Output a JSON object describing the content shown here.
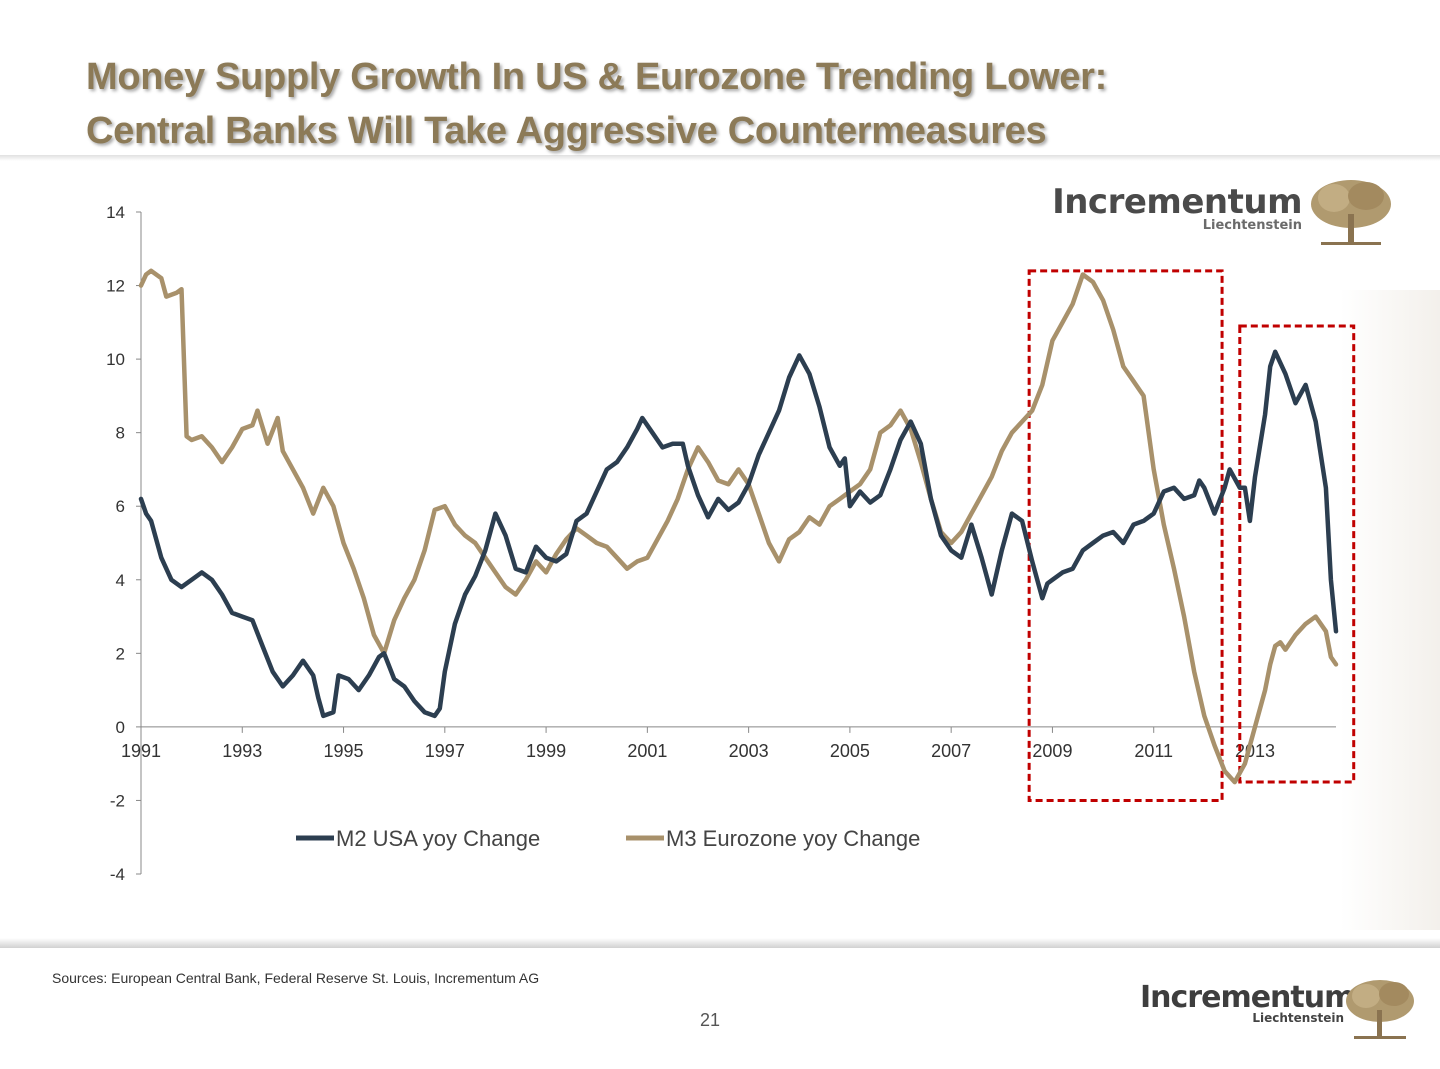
{
  "title": {
    "line1": "Money Supply Growth In US & Eurozone Trending Lower:",
    "line2": "Central Banks Will Take Aggressive Countermeasures"
  },
  "brand": {
    "name": "Incrementum",
    "sub": "Liechtenstein",
    "logo_icon": "tree-icon"
  },
  "footer": {
    "sources": "Sources: European Central Bank, Federal Reserve St. Louis, Incrementum AG",
    "page": "21"
  },
  "colors": {
    "m2": "#2c3e50",
    "m3": "#a8916b",
    "highlight": "#c00000",
    "title": "#8c7a57"
  },
  "chart_data": {
    "type": "line",
    "title": "",
    "xlabel": "",
    "ylabel": "",
    "xlim": [
      1991,
      2014.6
    ],
    "ylim": [
      -4,
      14
    ],
    "y_ticks": [
      -4,
      -2,
      0,
      2,
      4,
      6,
      8,
      10,
      12,
      14
    ],
    "x_ticks": [
      "1991",
      "1993",
      "1995",
      "1997",
      "1999",
      "2001",
      "2003",
      "2005",
      "2007",
      "2009",
      "2011",
      "2013"
    ],
    "grid": false,
    "legend": "bottom-center",
    "series": [
      {
        "name": "M2 USA yoy Change",
        "color": "#2c3e50",
        "points": [
          [
            1991.0,
            6.2
          ],
          [
            1991.1,
            5.8
          ],
          [
            1991.2,
            5.6
          ],
          [
            1991.4,
            4.6
          ],
          [
            1991.6,
            4.0
          ],
          [
            1991.8,
            3.8
          ],
          [
            1992.0,
            4.0
          ],
          [
            1992.2,
            4.2
          ],
          [
            1992.4,
            4.0
          ],
          [
            1992.6,
            3.6
          ],
          [
            1992.8,
            3.1
          ],
          [
            1993.0,
            3.0
          ],
          [
            1993.2,
            2.9
          ],
          [
            1993.4,
            2.2
          ],
          [
            1993.6,
            1.5
          ],
          [
            1993.8,
            1.1
          ],
          [
            1994.0,
            1.4
          ],
          [
            1994.2,
            1.8
          ],
          [
            1994.4,
            1.4
          ],
          [
            1994.5,
            0.8
          ],
          [
            1994.6,
            0.3
          ],
          [
            1994.8,
            0.4
          ],
          [
            1994.9,
            1.4
          ],
          [
            1995.1,
            1.3
          ],
          [
            1995.3,
            1.0
          ],
          [
            1995.5,
            1.4
          ],
          [
            1995.7,
            1.9
          ],
          [
            1995.8,
            2.0
          ],
          [
            1996.0,
            1.3
          ],
          [
            1996.2,
            1.1
          ],
          [
            1996.4,
            0.7
          ],
          [
            1996.6,
            0.4
          ],
          [
            1996.8,
            0.3
          ],
          [
            1996.9,
            0.5
          ],
          [
            1997.0,
            1.5
          ],
          [
            1997.2,
            2.8
          ],
          [
            1997.4,
            3.6
          ],
          [
            1997.6,
            4.1
          ],
          [
            1997.8,
            4.8
          ],
          [
            1998.0,
            5.8
          ],
          [
            1998.2,
            5.2
          ],
          [
            1998.4,
            4.3
          ],
          [
            1998.6,
            4.2
          ],
          [
            1998.8,
            4.9
          ],
          [
            1999.0,
            4.6
          ],
          [
            1999.2,
            4.5
          ],
          [
            1999.4,
            4.7
          ],
          [
            1999.6,
            5.6
          ],
          [
            1999.8,
            5.8
          ],
          [
            2000.0,
            6.4
          ],
          [
            2000.2,
            7.0
          ],
          [
            2000.4,
            7.2
          ],
          [
            2000.6,
            7.6
          ],
          [
            2000.8,
            8.1
          ],
          [
            2000.9,
            8.4
          ],
          [
            2001.1,
            8.0
          ],
          [
            2001.3,
            7.6
          ],
          [
            2001.5,
            7.7
          ],
          [
            2001.7,
            7.7
          ],
          [
            2001.8,
            7.1
          ],
          [
            2002.0,
            6.3
          ],
          [
            2002.2,
            5.7
          ],
          [
            2002.4,
            6.2
          ],
          [
            2002.6,
            5.9
          ],
          [
            2002.8,
            6.1
          ],
          [
            2003.0,
            6.6
          ],
          [
            2003.2,
            7.4
          ],
          [
            2003.4,
            8.0
          ],
          [
            2003.6,
            8.6
          ],
          [
            2003.8,
            9.5
          ],
          [
            2004.0,
            10.1
          ],
          [
            2004.2,
            9.6
          ],
          [
            2004.4,
            8.7
          ],
          [
            2004.6,
            7.6
          ],
          [
            2004.8,
            7.1
          ],
          [
            2004.9,
            7.3
          ],
          [
            2005.0,
            6.0
          ],
          [
            2005.2,
            6.4
          ],
          [
            2005.4,
            6.1
          ],
          [
            2005.6,
            6.3
          ],
          [
            2005.8,
            7.0
          ],
          [
            2006.0,
            7.8
          ],
          [
            2006.2,
            8.3
          ],
          [
            2006.4,
            7.7
          ],
          [
            2006.6,
            6.2
          ],
          [
            2006.8,
            5.2
          ],
          [
            2007.0,
            4.8
          ],
          [
            2007.2,
            4.6
          ],
          [
            2007.4,
            5.5
          ],
          [
            2007.6,
            4.6
          ],
          [
            2007.8,
            3.6
          ],
          [
            2008.0,
            4.8
          ],
          [
            2008.2,
            5.8
          ],
          [
            2008.4,
            5.6
          ],
          [
            2008.6,
            4.5
          ],
          [
            2008.8,
            3.5
          ],
          [
            2008.9,
            3.9
          ],
          [
            2009.0,
            4.0
          ],
          [
            2009.2,
            4.2
          ],
          [
            2009.4,
            4.3
          ],
          [
            2009.6,
            4.8
          ],
          [
            2009.8,
            5.0
          ],
          [
            2010.0,
            5.2
          ],
          [
            2010.2,
            5.3
          ],
          [
            2010.4,
            5.0
          ],
          [
            2010.6,
            5.5
          ],
          [
            2010.8,
            5.6
          ],
          [
            2011.0,
            5.8
          ],
          [
            2011.2,
            6.4
          ],
          [
            2011.4,
            6.5
          ],
          [
            2011.6,
            6.2
          ],
          [
            2011.8,
            6.3
          ],
          [
            2011.9,
            6.7
          ],
          [
            2012.0,
            6.5
          ],
          [
            2012.2,
            5.8
          ],
          [
            2012.4,
            6.5
          ],
          [
            2012.5,
            7.0
          ],
          [
            2012.7,
            6.5
          ],
          [
            2012.8,
            6.5
          ],
          [
            2012.9,
            5.6
          ],
          [
            2013.0,
            6.8
          ],
          [
            2013.2,
            8.5
          ],
          [
            2013.3,
            9.8
          ],
          [
            2013.4,
            10.2
          ],
          [
            2013.6,
            9.6
          ],
          [
            2013.8,
            8.8
          ],
          [
            2014.0,
            9.3
          ],
          [
            2014.2,
            8.3
          ],
          [
            2014.4,
            6.5
          ],
          [
            2014.5,
            4.0
          ],
          [
            2014.6,
            2.6
          ]
        ]
      },
      {
        "name": "M3 Eurozone yoy Change",
        "color": "#a8916b",
        "points": [
          [
            1991.0,
            12.0
          ],
          [
            1991.1,
            12.3
          ],
          [
            1991.2,
            12.4
          ],
          [
            1991.4,
            12.2
          ],
          [
            1991.5,
            11.7
          ],
          [
            1991.7,
            11.8
          ],
          [
            1991.8,
            11.9
          ],
          [
            1991.9,
            7.9
          ],
          [
            1992.0,
            7.8
          ],
          [
            1992.2,
            7.9
          ],
          [
            1992.4,
            7.6
          ],
          [
            1992.6,
            7.2
          ],
          [
            1992.8,
            7.6
          ],
          [
            1993.0,
            8.1
          ],
          [
            1993.2,
            8.2
          ],
          [
            1993.3,
            8.6
          ],
          [
            1993.5,
            7.7
          ],
          [
            1993.7,
            8.4
          ],
          [
            1993.8,
            7.5
          ],
          [
            1994.0,
            7.0
          ],
          [
            1994.2,
            6.5
          ],
          [
            1994.4,
            5.8
          ],
          [
            1994.6,
            6.5
          ],
          [
            1994.8,
            6.0
          ],
          [
            1995.0,
            5.0
          ],
          [
            1995.2,
            4.3
          ],
          [
            1995.4,
            3.5
          ],
          [
            1995.6,
            2.5
          ],
          [
            1995.8,
            2.0
          ],
          [
            1996.0,
            2.9
          ],
          [
            1996.2,
            3.5
          ],
          [
            1996.4,
            4.0
          ],
          [
            1996.6,
            4.8
          ],
          [
            1996.8,
            5.9
          ],
          [
            1997.0,
            6.0
          ],
          [
            1997.2,
            5.5
          ],
          [
            1997.4,
            5.2
          ],
          [
            1997.6,
            5.0
          ],
          [
            1997.8,
            4.6
          ],
          [
            1998.0,
            4.2
          ],
          [
            1998.2,
            3.8
          ],
          [
            1998.4,
            3.6
          ],
          [
            1998.6,
            4.0
          ],
          [
            1998.8,
            4.5
          ],
          [
            1999.0,
            4.2
          ],
          [
            1999.2,
            4.7
          ],
          [
            1999.4,
            5.1
          ],
          [
            1999.6,
            5.4
          ],
          [
            1999.8,
            5.2
          ],
          [
            2000.0,
            5.0
          ],
          [
            2000.2,
            4.9
          ],
          [
            2000.4,
            4.6
          ],
          [
            2000.6,
            4.3
          ],
          [
            2000.8,
            4.5
          ],
          [
            2001.0,
            4.6
          ],
          [
            2001.2,
            5.1
          ],
          [
            2001.4,
            5.6
          ],
          [
            2001.6,
            6.2
          ],
          [
            2001.8,
            7.0
          ],
          [
            2002.0,
            7.6
          ],
          [
            2002.2,
            7.2
          ],
          [
            2002.4,
            6.7
          ],
          [
            2002.6,
            6.6
          ],
          [
            2002.8,
            7.0
          ],
          [
            2003.0,
            6.6
          ],
          [
            2003.2,
            5.8
          ],
          [
            2003.4,
            5.0
          ],
          [
            2003.6,
            4.5
          ],
          [
            2003.8,
            5.1
          ],
          [
            2004.0,
            5.3
          ],
          [
            2004.2,
            5.7
          ],
          [
            2004.4,
            5.5
          ],
          [
            2004.6,
            6.0
          ],
          [
            2004.8,
            6.2
          ],
          [
            2005.0,
            6.4
          ],
          [
            2005.2,
            6.6
          ],
          [
            2005.4,
            7.0
          ],
          [
            2005.6,
            8.0
          ],
          [
            2005.8,
            8.2
          ],
          [
            2006.0,
            8.6
          ],
          [
            2006.2,
            8.1
          ],
          [
            2006.4,
            7.2
          ],
          [
            2006.6,
            6.2
          ],
          [
            2006.8,
            5.3
          ],
          [
            2007.0,
            5.0
          ],
          [
            2007.2,
            5.3
          ],
          [
            2007.4,
            5.8
          ],
          [
            2007.6,
            6.3
          ],
          [
            2007.8,
            6.8
          ],
          [
            2008.0,
            7.5
          ],
          [
            2008.2,
            8.0
          ],
          [
            2008.4,
            8.3
          ],
          [
            2008.6,
            8.6
          ],
          [
            2008.8,
            9.3
          ],
          [
            2009.0,
            10.5
          ],
          [
            2009.2,
            11.0
          ],
          [
            2009.4,
            11.5
          ],
          [
            2009.6,
            12.3
          ],
          [
            2009.8,
            12.1
          ],
          [
            2010.0,
            11.6
          ],
          [
            2010.2,
            10.8
          ],
          [
            2010.4,
            9.8
          ],
          [
            2010.6,
            9.4
          ],
          [
            2010.8,
            9.0
          ],
          [
            2011.0,
            7.0
          ],
          [
            2011.2,
            5.5
          ],
          [
            2011.4,
            4.3
          ],
          [
            2011.6,
            3.0
          ],
          [
            2011.8,
            1.5
          ],
          [
            2012.0,
            0.3
          ],
          [
            2012.2,
            -0.5
          ],
          [
            2012.4,
            -1.2
          ],
          [
            2012.6,
            -1.5
          ],
          [
            2012.8,
            -1.0
          ],
          [
            2013.0,
            0.0
          ],
          [
            2013.2,
            1.0
          ],
          [
            2013.3,
            1.7
          ],
          [
            2013.4,
            2.2
          ],
          [
            2013.5,
            2.3
          ],
          [
            2013.6,
            2.1
          ],
          [
            2013.8,
            2.5
          ],
          [
            2014.0,
            2.8
          ],
          [
            2014.2,
            3.0
          ],
          [
            2014.4,
            2.6
          ],
          [
            2014.5,
            1.9
          ],
          [
            2014.6,
            1.7
          ]
        ]
      }
    ]
  }
}
